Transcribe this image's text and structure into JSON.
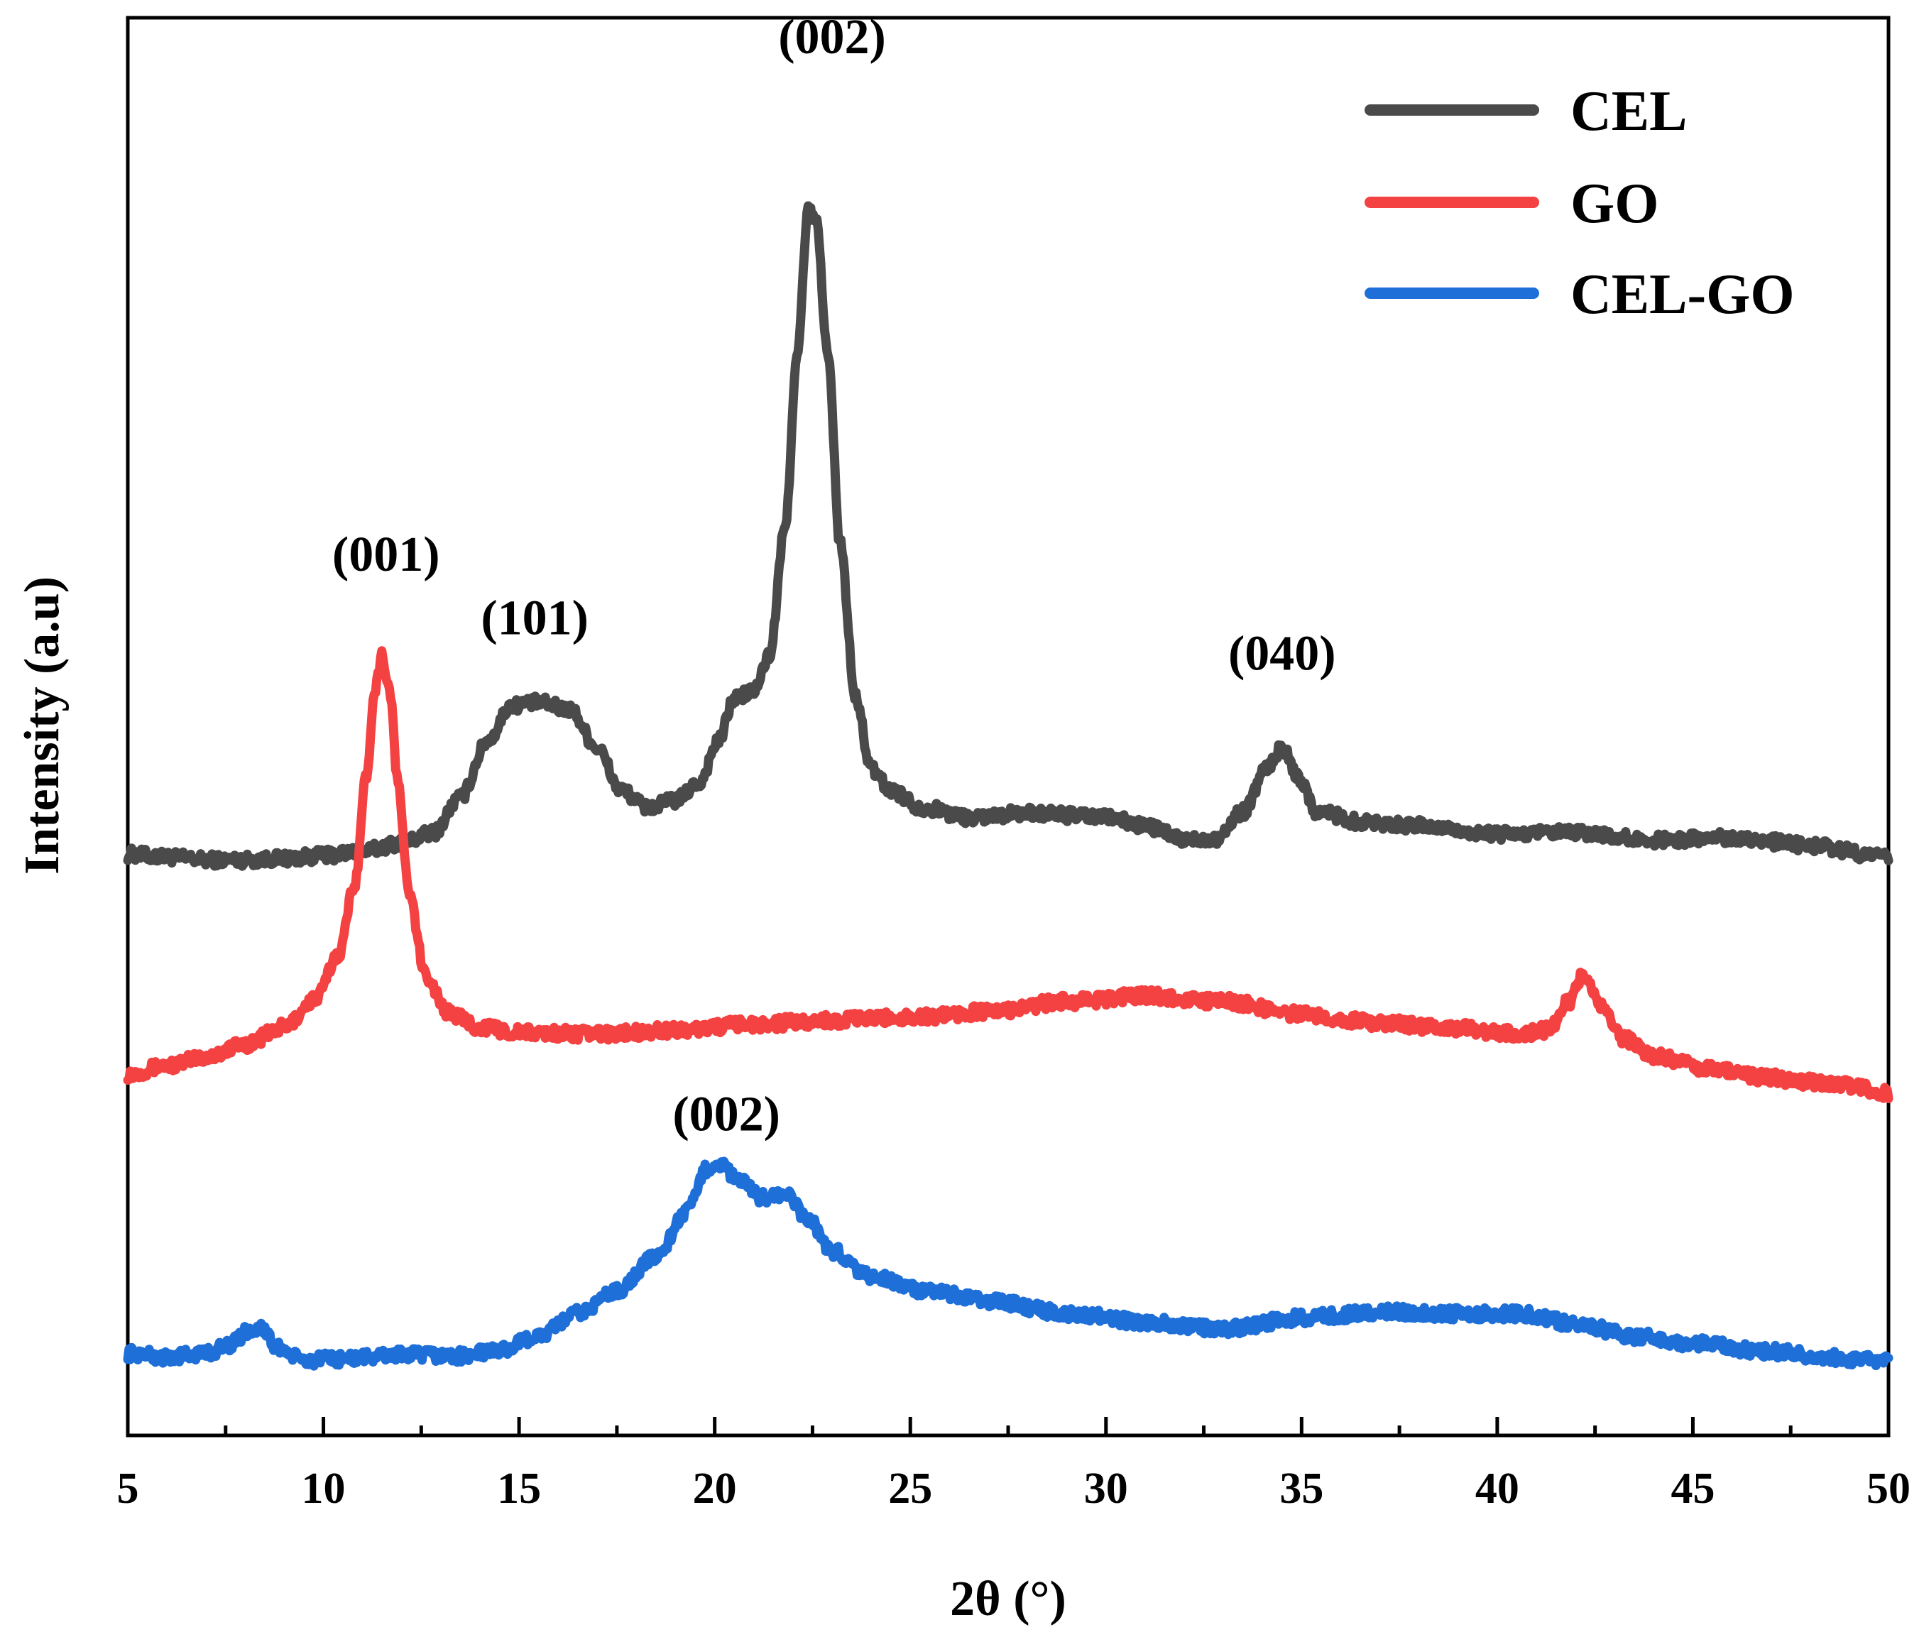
{
  "chart_data": {
    "type": "line",
    "title": "",
    "xlabel": "2θ (°)",
    "ylabel": "Intensity (a.u)",
    "xlim": [
      5,
      50
    ],
    "ylim": [
      0,
      100
    ],
    "x_ticks": [
      5,
      10,
      15,
      20,
      25,
      30,
      35,
      40,
      45,
      50
    ],
    "x_tick_labels": [
      "5",
      "10",
      "15",
      "20",
      "25",
      "30",
      "35",
      "40",
      "45",
      "50"
    ],
    "y_ticks_shown": false,
    "legend": {
      "position": "top-right",
      "entries": [
        "CEL",
        "GO",
        "CEL-GO"
      ]
    },
    "series": [
      {
        "name": "CEL",
        "color": "#4a4a4a",
        "points": [
          [
            5,
            41.0
          ],
          [
            6,
            40.8
          ],
          [
            7,
            40.6
          ],
          [
            8,
            40.6
          ],
          [
            9,
            40.7
          ],
          [
            10,
            40.9
          ],
          [
            11,
            41.2
          ],
          [
            12,
            41.8
          ],
          [
            12.8,
            42.5
          ],
          [
            13.5,
            45.0
          ],
          [
            14.2,
            49.0
          ],
          [
            14.8,
            51.5
          ],
          [
            15.5,
            51.7
          ],
          [
            16.3,
            51.2
          ],
          [
            17,
            48.5
          ],
          [
            17.6,
            45.5
          ],
          [
            18.3,
            44.3
          ],
          [
            19,
            44.8
          ],
          [
            19.6,
            46.0
          ],
          [
            20.1,
            49.0
          ],
          [
            20.5,
            52.0
          ],
          [
            21,
            52.5
          ],
          [
            21.4,
            55.0
          ],
          [
            21.8,
            64.0
          ],
          [
            22.1,
            76.0
          ],
          [
            22.4,
            86.5
          ],
          [
            22.6,
            85.5
          ],
          [
            22.9,
            76.0
          ],
          [
            23.2,
            63.0
          ],
          [
            23.6,
            52.0
          ],
          [
            24,
            47.0
          ],
          [
            24.5,
            45.5
          ],
          [
            25.3,
            44.3
          ],
          [
            26.5,
            43.6
          ],
          [
            28,
            43.9
          ],
          [
            30,
            43.6
          ],
          [
            31,
            43.0
          ],
          [
            32,
            42.0
          ],
          [
            32.8,
            42.1
          ],
          [
            33.5,
            44.0
          ],
          [
            34.1,
            47.0
          ],
          [
            34.5,
            48.5
          ],
          [
            34.9,
            46.5
          ],
          [
            35.4,
            44.0
          ],
          [
            36.5,
            43.3
          ],
          [
            38,
            43.0
          ],
          [
            40,
            42.4
          ],
          [
            42,
            42.5
          ],
          [
            44,
            42.0
          ],
          [
            46,
            42.2
          ],
          [
            48,
            41.6
          ],
          [
            50,
            40.8
          ]
        ]
      },
      {
        "name": "GO",
        "color": "#f44141",
        "points": [
          [
            5,
            25.5
          ],
          [
            6,
            26.1
          ],
          [
            7,
            26.7
          ],
          [
            8,
            27.6
          ],
          [
            9,
            28.8
          ],
          [
            9.8,
            30.8
          ],
          [
            10.4,
            34.0
          ],
          [
            10.8,
            39.0
          ],
          [
            11.1,
            46.5
          ],
          [
            11.3,
            52.5
          ],
          [
            11.5,
            55.0
          ],
          [
            11.7,
            52.5
          ],
          [
            11.9,
            46.0
          ],
          [
            12.2,
            38.0
          ],
          [
            12.6,
            32.5
          ],
          [
            13.2,
            29.8
          ],
          [
            14,
            28.8
          ],
          [
            15,
            28.4
          ],
          [
            17,
            28.3
          ],
          [
            19,
            28.6
          ],
          [
            21,
            29.0
          ],
          [
            23,
            29.3
          ],
          [
            25,
            29.5
          ],
          [
            27,
            29.9
          ],
          [
            29,
            30.6
          ],
          [
            31,
            31.0
          ],
          [
            33,
            30.6
          ],
          [
            35,
            29.7
          ],
          [
            37,
            29.1
          ],
          [
            39,
            28.7
          ],
          [
            40.5,
            28.3
          ],
          [
            41.3,
            28.6
          ],
          [
            41.8,
            30.5
          ],
          [
            42.2,
            32.5
          ],
          [
            42.6,
            30.5
          ],
          [
            43.2,
            28.0
          ],
          [
            44,
            26.8
          ],
          [
            45.5,
            25.8
          ],
          [
            47,
            25.2
          ],
          [
            48.5,
            24.8
          ],
          [
            50,
            24.2
          ]
        ]
      },
      {
        "name": "CEL-GO",
        "color": "#1f6fd8",
        "points": [
          [
            5,
            5.8
          ],
          [
            6,
            5.5
          ],
          [
            7,
            5.8
          ],
          [
            7.6,
            6.4
          ],
          [
            8.1,
            7.4
          ],
          [
            8.4,
            7.6
          ],
          [
            8.8,
            6.2
          ],
          [
            9.5,
            5.3
          ],
          [
            10.5,
            5.4
          ],
          [
            12,
            5.7
          ],
          [
            13.5,
            5.6
          ],
          [
            14.5,
            6.0
          ],
          [
            15.5,
            7.0
          ],
          [
            16.5,
            8.6
          ],
          [
            17.5,
            10.2
          ],
          [
            18.5,
            12.6
          ],
          [
            19.3,
            15.8
          ],
          [
            19.8,
            18.8
          ],
          [
            20.1,
            19.2
          ],
          [
            20.6,
            18.0
          ],
          [
            21.2,
            16.8
          ],
          [
            21.8,
            17.0
          ],
          [
            22.4,
            15.2
          ],
          [
            23,
            13.0
          ],
          [
            24,
            11.2
          ],
          [
            25.5,
            10.1
          ],
          [
            27,
            9.5
          ],
          [
            29,
            8.6
          ],
          [
            31,
            8.0
          ],
          [
            33,
            7.5
          ],
          [
            35,
            8.3
          ],
          [
            37,
            8.7
          ],
          [
            39,
            8.6
          ],
          [
            40.5,
            8.6
          ],
          [
            42,
            7.9
          ],
          [
            43.5,
            7.0
          ],
          [
            45,
            6.5
          ],
          [
            47,
            5.9
          ],
          [
            48.5,
            5.5
          ],
          [
            50,
            5.2
          ]
        ]
      }
    ],
    "annotations": [
      {
        "text": "(002)",
        "x": 23.0,
        "y": 97.5
      },
      {
        "text": "(001)",
        "x": 11.6,
        "y": 61.0
      },
      {
        "text": "(101)",
        "x": 15.4,
        "y": 56.5
      },
      {
        "text": "(040)",
        "x": 34.5,
        "y": 54.0
      },
      {
        "text": "(002)",
        "x": 20.3,
        "y": 21.5
      }
    ]
  }
}
